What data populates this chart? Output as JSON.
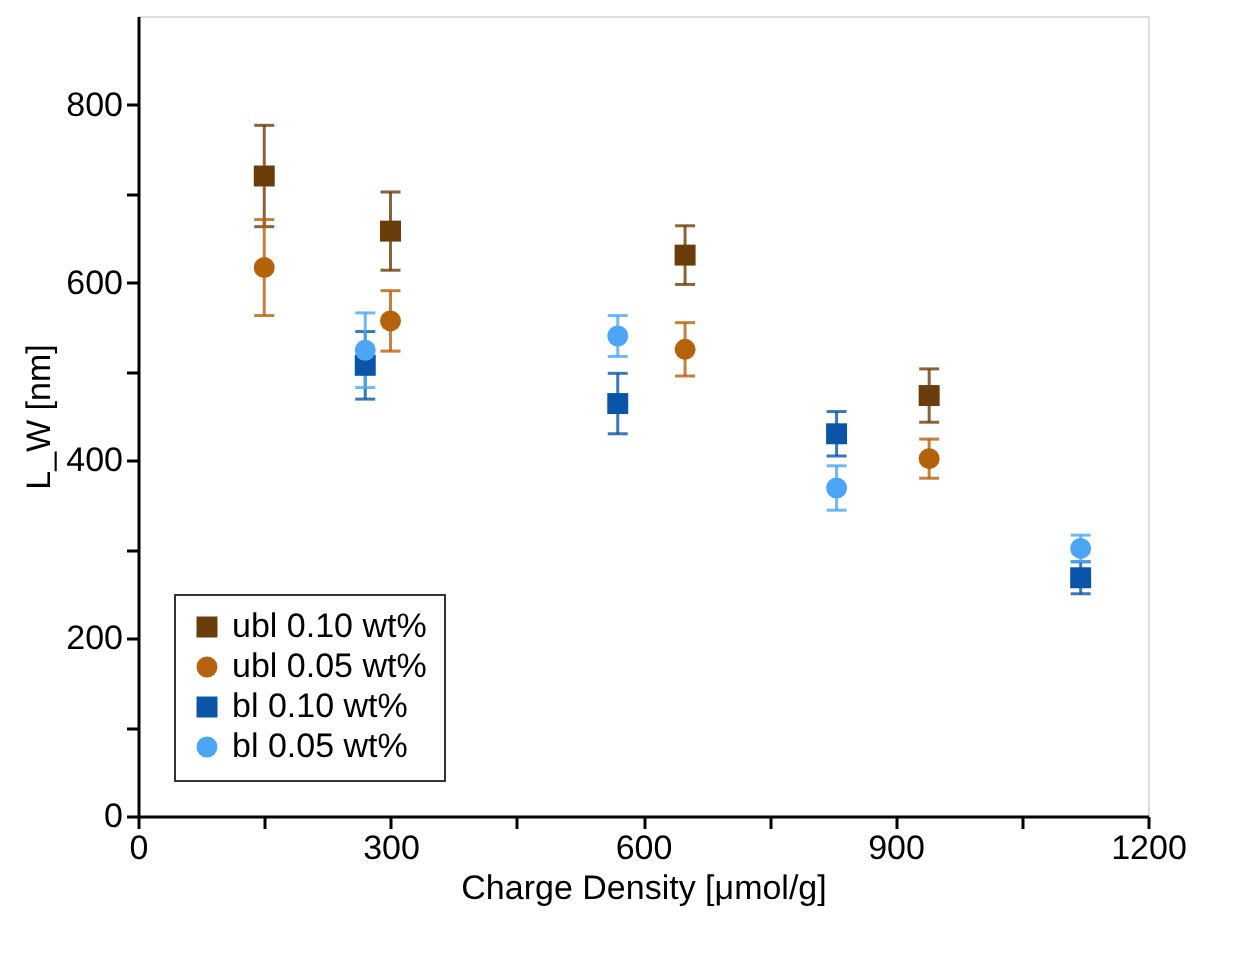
{
  "chart_data": {
    "type": "scatter",
    "xlabel": "Charge Density [μmol/g]",
    "ylabel": "L_W [nm]",
    "series": [
      {
        "name": "ubl 0.10 wt%",
        "color": "#6b3d0a",
        "marker": "square",
        "x": [
          150,
          300,
          650,
          940
        ],
        "values": [
          720,
          658,
          631,
          473
        ],
        "errors": [
          57,
          44,
          33,
          30
        ]
      },
      {
        "name": "ubl 0.05 wt%",
        "color": "#b5620c",
        "marker": "circle",
        "x": [
          150,
          300,
          650,
          940
        ],
        "values": [
          617,
          557,
          525,
          402
        ],
        "errors": [
          54,
          34,
          30,
          22
        ]
      },
      {
        "name": "bl 0.10 wt%",
        "color": "#0a55a8",
        "marker": "square",
        "x": [
          270,
          570,
          830,
          1120
        ],
        "values": [
          507,
          464,
          430,
          268
        ],
        "errors": [
          38,
          34,
          25,
          18
        ]
      },
      {
        "name": "bl 0.05 wt%",
        "color": "#4da6f5",
        "marker": "circle",
        "x": [
          270,
          570,
          830,
          1120
        ],
        "values": [
          524,
          540,
          369,
          301
        ],
        "errors": [
          42,
          23,
          25,
          15
        ]
      }
    ],
    "xlim": [
      0,
      1200
    ],
    "xticks": [
      0,
      {
        "value": 150,
        "label": null
      },
      300,
      {
        "value": 450,
        "label": null
      },
      600,
      {
        "value": 750,
        "label": null
      },
      900,
      {
        "value": 1050,
        "label": null
      },
      1200
    ],
    "ylim": [
      0,
      900
    ],
    "yticks": [
      0,
      {
        "value": 100,
        "label": null
      },
      200,
      {
        "value": 300,
        "label": null
      },
      400,
      {
        "value": 500,
        "label": null
      },
      600,
      {
        "value": 700,
        "label": null
      },
      800
    ],
    "grid": false,
    "legend": "bottom left"
  }
}
